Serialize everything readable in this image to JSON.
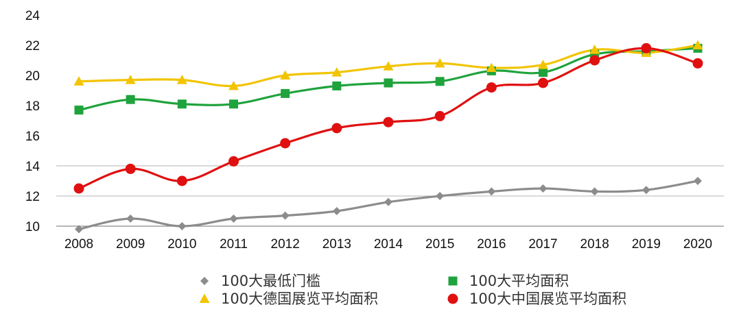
{
  "chart_data": {
    "type": "line",
    "title": "",
    "xlabel": "",
    "ylabel": "",
    "categories": [
      "2008",
      "2009",
      "2010",
      "2011",
      "2012",
      "2013",
      "2014",
      "2015",
      "2016",
      "2017",
      "2018",
      "2019",
      "2020"
    ],
    "ylim": [
      10,
      24
    ],
    "yticks": [
      10,
      12,
      14,
      16,
      18,
      20,
      22,
      24
    ],
    "gridlines_at": [
      12,
      14
    ],
    "legend_position": "bottom",
    "series": [
      {
        "name": "100大最低门槛",
        "color": "#8c8c8c",
        "marker": "diamond",
        "values": [
          9.8,
          10.5,
          10.0,
          10.5,
          10.7,
          11.0,
          11.6,
          12.0,
          12.3,
          12.5,
          12.3,
          12.4,
          13.0
        ]
      },
      {
        "name": "100大平均面积",
        "color": "#1fa33c",
        "marker": "square",
        "values": [
          17.7,
          18.4,
          18.1,
          18.1,
          18.8,
          19.3,
          19.5,
          19.6,
          20.3,
          20.2,
          21.4,
          21.6,
          21.8
        ]
      },
      {
        "name": "100大德国展览平均面积",
        "color": "#f2c400",
        "marker": "triangle",
        "values": [
          19.6,
          19.7,
          19.7,
          19.3,
          20.0,
          20.2,
          20.6,
          20.8,
          20.5,
          20.7,
          21.7,
          21.5,
          22.0
        ]
      },
      {
        "name": "100大中国展览平均面积",
        "color": "#e01010",
        "marker": "circle",
        "values": [
          12.5,
          13.8,
          13.0,
          14.3,
          15.5,
          16.5,
          16.9,
          17.3,
          19.2,
          19.5,
          21.0,
          21.8,
          20.8
        ]
      }
    ]
  }
}
